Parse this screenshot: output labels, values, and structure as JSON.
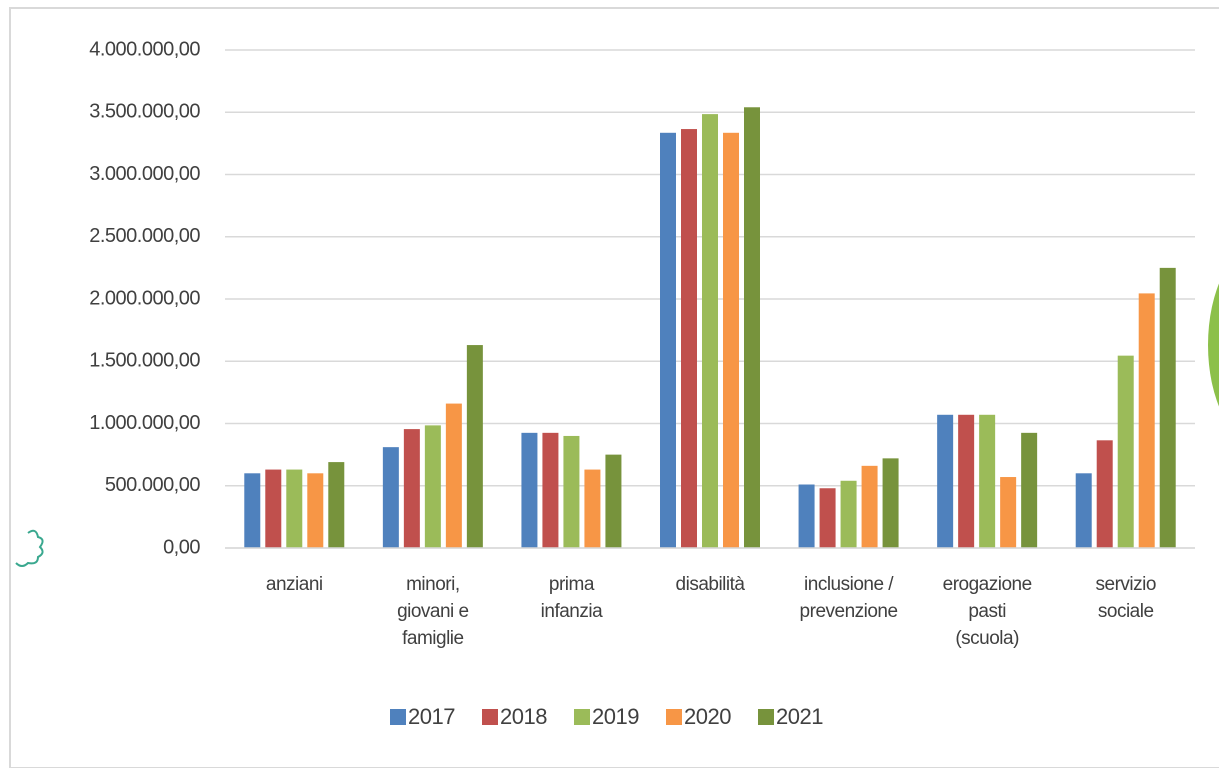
{
  "chart_data": {
    "type": "bar",
    "categories": [
      "anziani",
      "minori, giovani e famiglie",
      "prima infanzia",
      "disabilità",
      "inclusione / prevenzione",
      "erogazione pasti (scuola)",
      "servizio sociale"
    ],
    "series": [
      {
        "name": "2017",
        "color": "#4f81bd",
        "values": [
          600000,
          810000,
          925000,
          3335000,
          510000,
          1070000,
          600000
        ]
      },
      {
        "name": "2018",
        "color": "#c0504d",
        "values": [
          630000,
          955000,
          925000,
          3365000,
          480000,
          1070000,
          865000
        ]
      },
      {
        "name": "2019",
        "color": "#9bbb59",
        "values": [
          630000,
          985000,
          900000,
          3485000,
          540000,
          1070000,
          1545000
        ]
      },
      {
        "name": "2020",
        "color": "#f79646",
        "values": [
          600000,
          1160000,
          630000,
          3335000,
          660000,
          570000,
          2045000
        ]
      },
      {
        "name": "2021",
        "color": "#77933c",
        "values": [
          690000,
          1630000,
          750000,
          3540000,
          720000,
          925000,
          2250000
        ]
      }
    ],
    "ylim": [
      0,
      4000000
    ],
    "yticks": [
      {
        "value": 0,
        "label": "0,00"
      },
      {
        "value": 500000,
        "label": "500.000,00"
      },
      {
        "value": 1000000,
        "label": "1.000.000,00"
      },
      {
        "value": 1500000,
        "label": "1.500.000,00"
      },
      {
        "value": 2000000,
        "label": "2.000.000,00"
      },
      {
        "value": 2500000,
        "label": "2.500.000,00"
      },
      {
        "value": 3000000,
        "label": "3.000.000,00"
      },
      {
        "value": 3500000,
        "label": "3.500.000,00"
      },
      {
        "value": 4000000,
        "label": "4.000.000,00"
      }
    ],
    "grid": true,
    "legend": "bottom"
  }
}
